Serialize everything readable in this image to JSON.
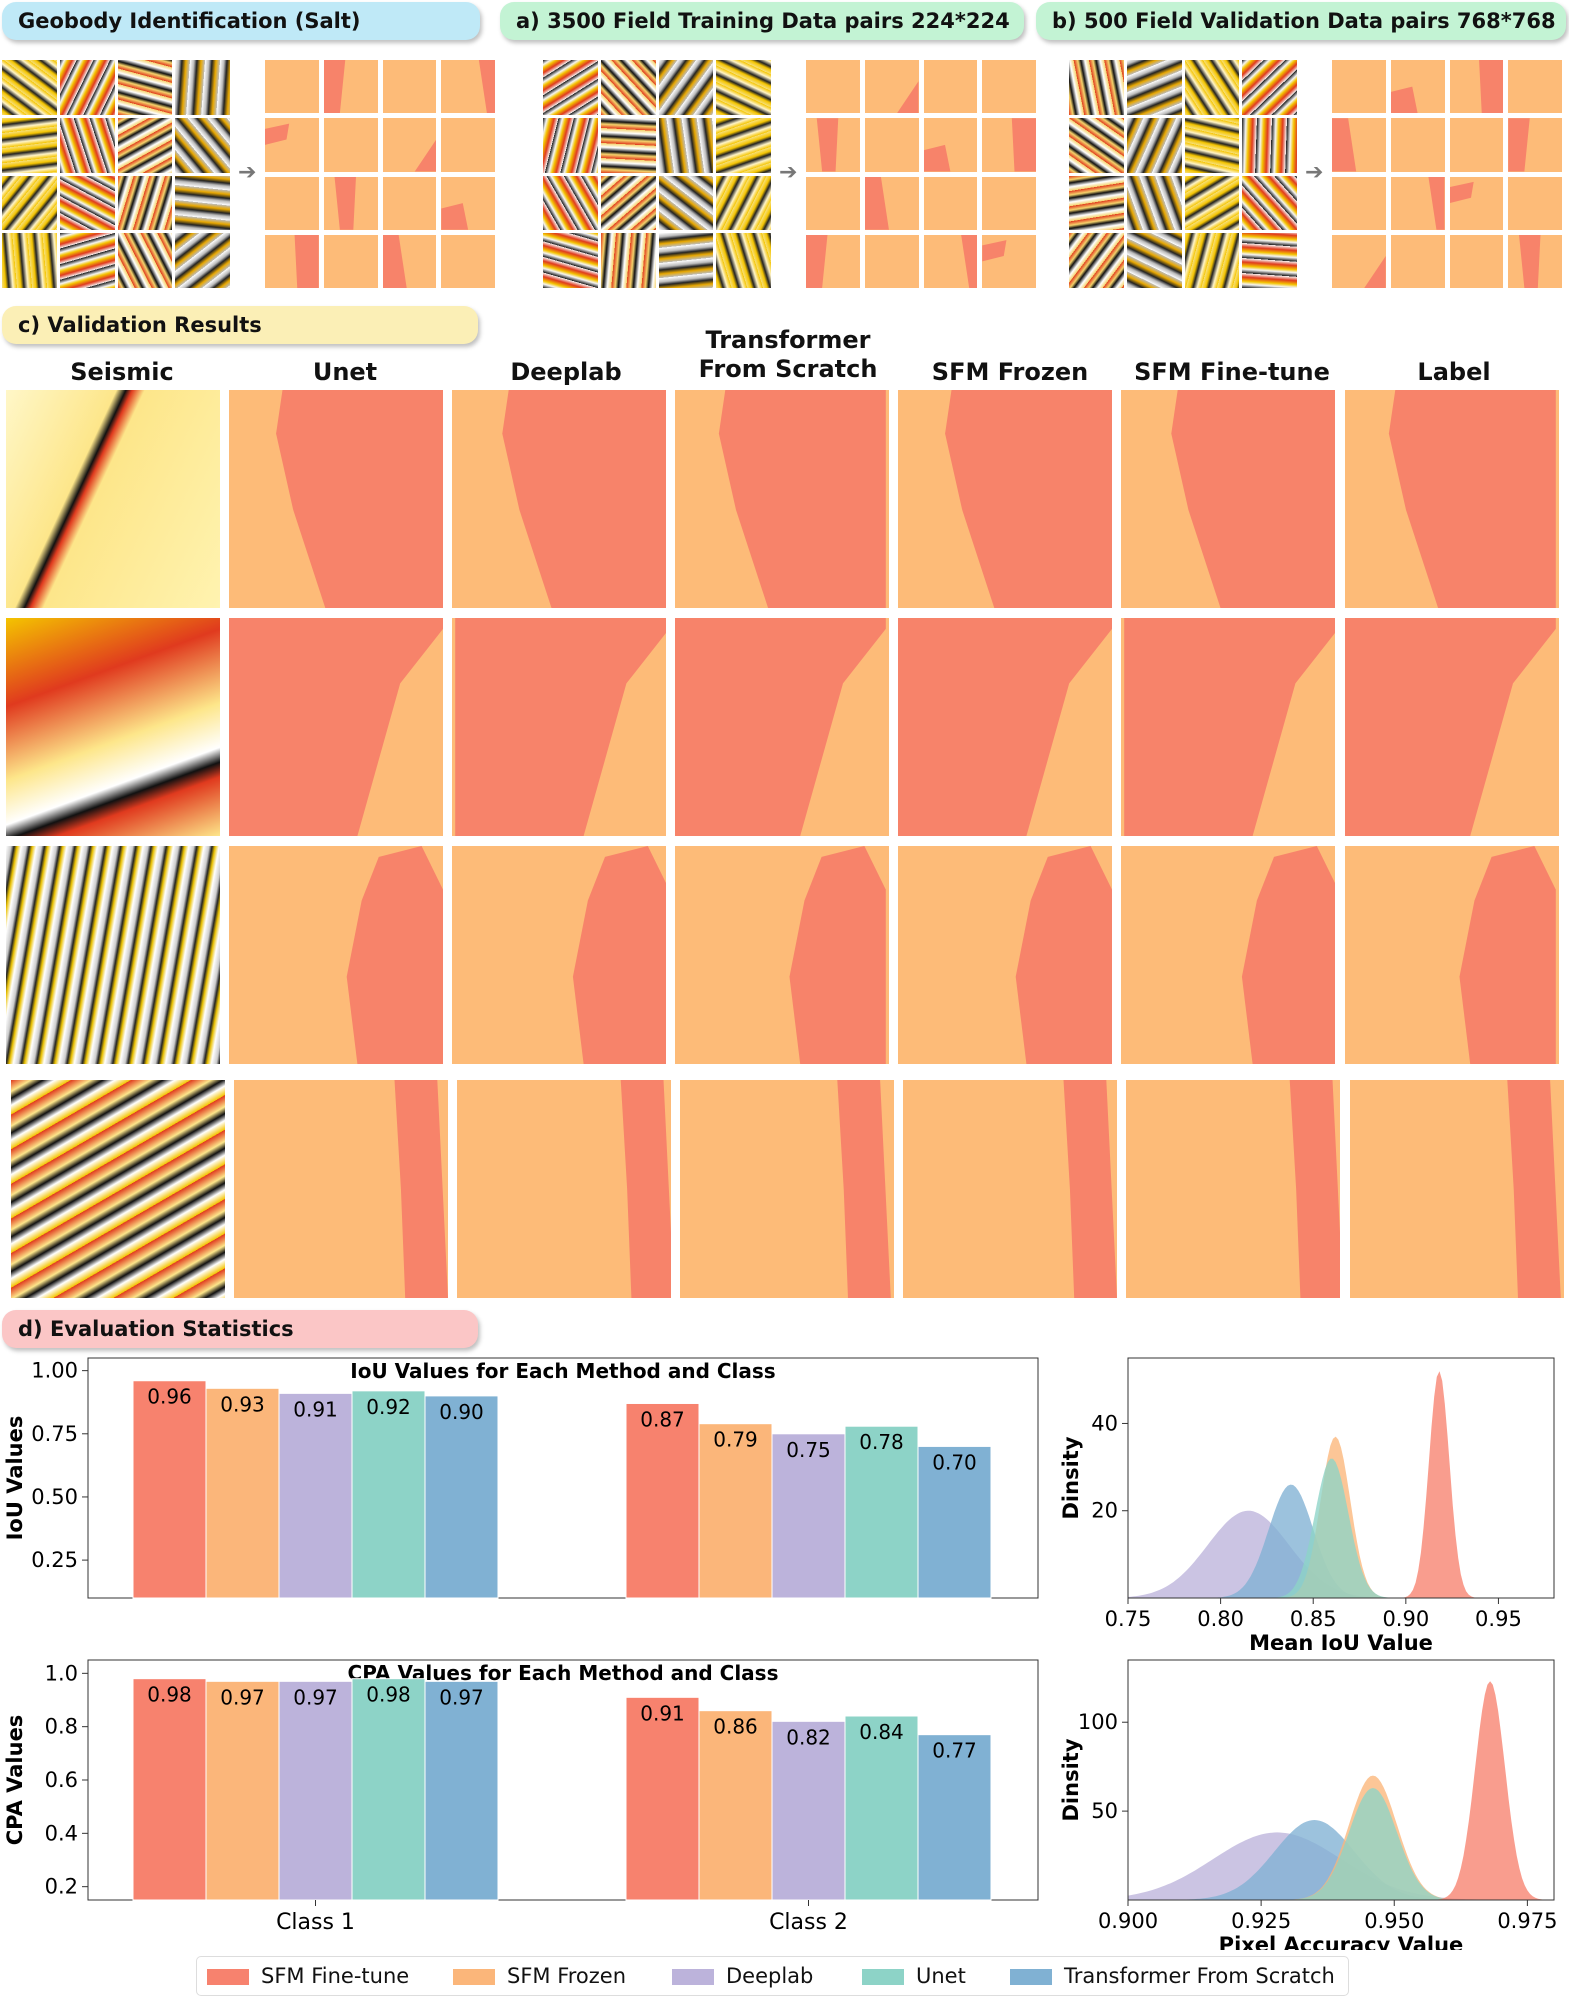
{
  "panels": {
    "geobody_title": "Geobody Identification (Salt)",
    "training_title": "a) 3500 Field Training Data pairs 224*224",
    "validation_title": "b) 500  Field Validation Data pairs 768*768",
    "results_title": "c) Validation Results",
    "stats_title": "d) Evaluation Statistics"
  },
  "column_headers": [
    "Seismic",
    "Unet",
    "Deeplab",
    "Transformer\nFrom Scratch",
    "SFM Frozen",
    "SFM Fine-tune",
    "Label"
  ],
  "colors": {
    "salt": "#f7836a",
    "background": "#fdbb78",
    "sfm_finetune": "#f7826e",
    "sfm_frozen": "#fbb67a",
    "deeplab": "#bcb3db",
    "unet": "#8dd3c7",
    "transformer": "#80b1d3"
  },
  "legend": [
    "SFM Fine-tune",
    "SFM Frozen",
    "Deeplab",
    "Unet",
    "Transformer From Scratch"
  ],
  "chart_data": [
    {
      "type": "bar",
      "title": "IoU Values for Each Method and Class",
      "ylabel": "IoU Values",
      "xlabel": "",
      "categories": [
        "Class 1",
        "Class 2"
      ],
      "ylim": [
        0.1,
        1.05
      ],
      "yticks": [
        "0.25",
        "0.50",
        "0.75",
        "1.00"
      ],
      "series": [
        {
          "name": "SFM Fine-tune",
          "values": [
            0.96,
            0.87
          ]
        },
        {
          "name": "SFM Frozen",
          "values": [
            0.93,
            0.79
          ]
        },
        {
          "name": "Deeplab",
          "values": [
            0.91,
            0.75
          ]
        },
        {
          "name": "Unet",
          "values": [
            0.92,
            0.78
          ]
        },
        {
          "name": "Transformer From Scratch",
          "values": [
            0.9,
            0.7
          ]
        }
      ]
    },
    {
      "type": "bar",
      "title": "CPA Values for Each Method and Class",
      "ylabel": "CPA Values",
      "xlabel": "",
      "categories": [
        "Class 1",
        "Class 2"
      ],
      "ylim": [
        0.15,
        1.05
      ],
      "yticks": [
        "0.2",
        "0.4",
        "0.6",
        "0.8",
        "1.0"
      ],
      "series": [
        {
          "name": "SFM Fine-tune",
          "values": [
            0.98,
            0.91
          ]
        },
        {
          "name": "SFM Frozen",
          "values": [
            0.97,
            0.86
          ]
        },
        {
          "name": "Deeplab",
          "values": [
            0.97,
            0.82
          ]
        },
        {
          "name": "Unet",
          "values": [
            0.98,
            0.84
          ]
        },
        {
          "name": "Transformer From Scratch",
          "values": [
            0.97,
            0.77
          ]
        }
      ]
    },
    {
      "type": "area",
      "title": "",
      "xlabel": "Mean IoU Value",
      "ylabel": "Dinsity",
      "xlim": [
        0.75,
        0.98
      ],
      "ylim": [
        0,
        55
      ],
      "xticks": [
        "0.75",
        "0.80",
        "0.85",
        "0.90",
        "0.95"
      ],
      "yticks": [
        "20",
        "40"
      ],
      "series": [
        {
          "name": "Deeplab",
          "peak_x": 0.815,
          "peak_y": 20
        },
        {
          "name": "Transformer From Scratch",
          "peak_x": 0.838,
          "peak_y": 26
        },
        {
          "name": "SFM Frozen",
          "peak_x": 0.862,
          "peak_y": 37
        },
        {
          "name": "Unet",
          "peak_x": 0.86,
          "peak_y": 32
        },
        {
          "name": "SFM Fine-tune",
          "peak_x": 0.918,
          "peak_y": 52
        }
      ]
    },
    {
      "type": "area",
      "title": "",
      "xlabel": "Pixel Accuracy Value",
      "ylabel": "Dinsity",
      "xlim": [
        0.9,
        0.98
      ],
      "ylim": [
        0,
        135
      ],
      "xticks": [
        "0.900",
        "0.925",
        "0.950",
        "0.975"
      ],
      "yticks": [
        "50",
        "100"
      ],
      "series": [
        {
          "name": "Deeplab",
          "peak_x": 0.928,
          "peak_y": 38
        },
        {
          "name": "Transformer From Scratch",
          "peak_x": 0.935,
          "peak_y": 45
        },
        {
          "name": "SFM Frozen",
          "peak_x": 0.946,
          "peak_y": 70
        },
        {
          "name": "Unet",
          "peak_x": 0.946,
          "peak_y": 63
        },
        {
          "name": "SFM Fine-tune",
          "peak_x": 0.968,
          "peak_y": 123
        }
      ]
    }
  ]
}
